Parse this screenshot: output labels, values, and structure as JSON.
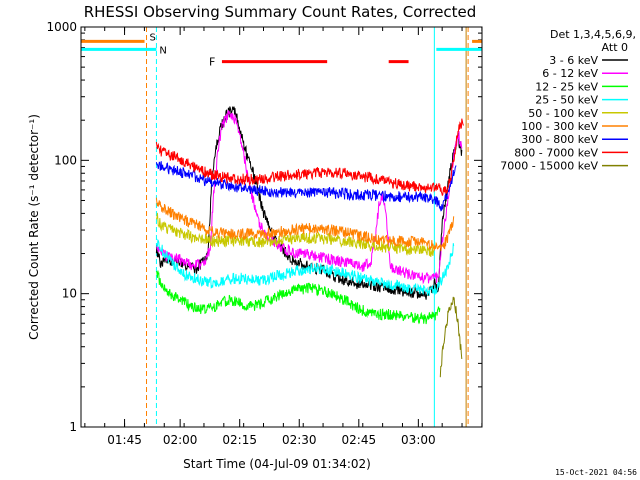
{
  "chart_data": {
    "type": "line",
    "title": "RHESSI Observing Summary Count Rates, Corrected",
    "xlabel": "Start Time (04-Jul-09 01:34:02)",
    "ylabel": "Corrected Count Rate (s⁻¹ detector⁻¹)",
    "y_scale": "log",
    "ylim": [
      1,
      1000
    ],
    "xlim_minutes": [
      1.0,
      102.0
    ],
    "x_tick_minutes": [
      11.97,
      25.97,
      40.97,
      55.97,
      70.97,
      85.97
    ],
    "x_tick_labels": [
      "01:45",
      "02:00",
      "02:15",
      "02:30",
      "02:45",
      "03:00"
    ],
    "y_tick_values": [
      1,
      10,
      100,
      1000
    ],
    "y_tick_labels": [
      "1",
      "10",
      "100",
      "1000"
    ],
    "footer_date": "15-Oct-2021 04:56",
    "legend": {
      "header_line1": "Det 1,3,4,5,6,9,",
      "header_line2": "Att 0"
    },
    "markers": {
      "saa": {
        "label": "S",
        "color": "#ff8000",
        "lines_at_minutes": [
          17.5,
          98.5
        ],
        "bars_minutes": [
          [
            1.0,
            17.0
          ],
          [
            99.5,
            102.0
          ]
        ],
        "bar_value": 780
      },
      "night": {
        "label": "N",
        "color": "#00ffff",
        "lines_at_minutes": [
          20.0,
          90.0,
          102.0
        ],
        "bars_minutes": [
          [
            1.0,
            20.0
          ],
          [
            90.5,
            102.0
          ]
        ],
        "bar_value": 680
      },
      "flare": {
        "label": "F",
        "color": "#ff0000",
        "bars_minutes": [
          [
            36.5,
            63.0
          ],
          [
            78.5,
            83.5
          ]
        ],
        "bar_value": 550
      },
      "extra_lines": [
        {
          "minute": 98.0,
          "color": "#c08000"
        }
      ]
    },
    "series": [
      {
        "name": "3 - 6 keV",
        "color": "#000000",
        "points": [
          [
            20,
            22
          ],
          [
            21,
            17
          ],
          [
            23,
            18
          ],
          [
            26,
            17
          ],
          [
            30,
            15
          ],
          [
            33,
            20
          ],
          [
            34,
            80
          ],
          [
            36,
            175
          ],
          [
            38,
            230
          ],
          [
            40,
            230
          ],
          [
            42,
            130
          ],
          [
            45,
            70
          ],
          [
            47,
            40
          ],
          [
            50,
            25
          ],
          [
            54,
            18
          ],
          [
            58,
            16
          ],
          [
            62,
            15
          ],
          [
            66,
            13
          ],
          [
            70,
            12
          ],
          [
            74,
            11.5
          ],
          [
            78,
            11
          ],
          [
            82,
            10.5
          ],
          [
            86,
            10
          ],
          [
            88,
            9.5
          ],
          [
            90,
            12
          ],
          [
            91,
            11
          ],
          [
            92,
            35
          ],
          [
            93,
            55
          ],
          [
            94,
            85
          ],
          [
            95,
            120
          ],
          [
            96,
            150
          ],
          [
            97,
            110
          ]
        ]
      },
      {
        "name": "6 - 12 keV",
        "color": "#ff00ff",
        "points": [
          [
            20,
            22
          ],
          [
            21,
            20
          ],
          [
            23,
            19
          ],
          [
            26,
            18
          ],
          [
            29,
            16
          ],
          [
            32,
            17
          ],
          [
            33.5,
            22
          ],
          [
            34.5,
            60
          ],
          [
            35.5,
            120
          ],
          [
            36.5,
            180
          ],
          [
            38,
            220
          ],
          [
            40,
            200
          ],
          [
            42,
            110
          ],
          [
            44,
            55
          ],
          [
            46,
            33
          ],
          [
            48,
            26
          ],
          [
            52,
            22
          ],
          [
            56,
            20
          ],
          [
            60,
            19
          ],
          [
            64,
            18
          ],
          [
            68,
            17
          ],
          [
            72,
            16
          ],
          [
            74,
            17
          ],
          [
            75,
            25
          ],
          [
            76,
            45
          ],
          [
            77,
            55
          ],
          [
            78,
            35
          ],
          [
            79,
            16
          ],
          [
            80,
            15
          ],
          [
            84,
            14
          ],
          [
            88,
            13
          ],
          [
            91,
            13
          ],
          [
            92,
            25
          ],
          [
            93,
            40
          ],
          [
            94,
            70
          ],
          [
            95,
            110
          ],
          [
            96,
            160
          ],
          [
            97,
            120
          ]
        ]
      },
      {
        "name": "12 - 25 keV",
        "color": "#00ff00",
        "points": [
          [
            20,
            15
          ],
          [
            21,
            12
          ],
          [
            23,
            10
          ],
          [
            26,
            9
          ],
          [
            29,
            8
          ],
          [
            32,
            7.5
          ],
          [
            35,
            8
          ],
          [
            38,
            9
          ],
          [
            41,
            8.5
          ],
          [
            44,
            8
          ],
          [
            47,
            8.5
          ],
          [
            50,
            9.5
          ],
          [
            54,
            10.5
          ],
          [
            58,
            11
          ],
          [
            62,
            10.5
          ],
          [
            66,
            9.5
          ],
          [
            70,
            8
          ],
          [
            74,
            7
          ],
          [
            78,
            7
          ],
          [
            82,
            6.8
          ],
          [
            86,
            6.5
          ],
          [
            88,
            6.5
          ],
          [
            90,
            6.8
          ],
          [
            91.5,
            8
          ]
        ]
      },
      {
        "name": "25 - 50 keV",
        "color": "#00ffff",
        "points": [
          [
            20,
            25
          ],
          [
            21,
            22
          ],
          [
            24,
            17
          ],
          [
            27,
            14
          ],
          [
            30,
            13
          ],
          [
            33,
            12
          ],
          [
            36,
            12.5
          ],
          [
            39,
            13
          ],
          [
            42,
            13
          ],
          [
            45,
            12.5
          ],
          [
            48,
            13
          ],
          [
            52,
            14
          ],
          [
            56,
            15
          ],
          [
            60,
            15.5
          ],
          [
            64,
            15
          ],
          [
            68,
            14
          ],
          [
            72,
            13
          ],
          [
            76,
            12
          ],
          [
            80,
            11.5
          ],
          [
            84,
            11
          ],
          [
            88,
            10.5
          ],
          [
            91,
            11
          ],
          [
            92,
            13
          ],
          [
            93,
            15
          ],
          [
            94,
            18
          ],
          [
            95,
            24
          ]
        ]
      },
      {
        "name": "50 - 100 keV",
        "color": "#c8c800",
        "points": [
          [
            20,
            38
          ],
          [
            21,
            33
          ],
          [
            24,
            30
          ],
          [
            27,
            28
          ],
          [
            30,
            26
          ],
          [
            33,
            25
          ],
          [
            36,
            24.5
          ],
          [
            39,
            25
          ],
          [
            42,
            25
          ],
          [
            45,
            24.5
          ],
          [
            48,
            24.5
          ],
          [
            52,
            25.5
          ],
          [
            56,
            26
          ],
          [
            60,
            26
          ],
          [
            64,
            25.5
          ],
          [
            68,
            24.5
          ],
          [
            72,
            23.5
          ],
          [
            76,
            22.5
          ],
          [
            80,
            22
          ],
          [
            84,
            21.5
          ],
          [
            88,
            21
          ],
          [
            90,
            20.5
          ]
        ]
      },
      {
        "name": "100 - 300 keV",
        "color": "#ff8000",
        "points": [
          [
            20,
            50
          ],
          [
            21,
            45
          ],
          [
            24,
            40
          ],
          [
            27,
            36
          ],
          [
            30,
            33
          ],
          [
            33,
            30
          ],
          [
            36,
            28.5
          ],
          [
            39,
            28
          ],
          [
            42,
            28
          ],
          [
            45,
            28
          ],
          [
            48,
            28.5
          ],
          [
            52,
            29.5
          ],
          [
            56,
            30.5
          ],
          [
            60,
            31
          ],
          [
            64,
            30
          ],
          [
            68,
            28.5
          ],
          [
            72,
            27
          ],
          [
            76,
            25.5
          ],
          [
            80,
            25
          ],
          [
            84,
            24.5
          ],
          [
            88,
            24
          ],
          [
            90,
            23
          ],
          [
            92,
            22
          ],
          [
            93,
            25
          ],
          [
            94,
            30
          ],
          [
            95,
            38
          ]
        ]
      },
      {
        "name": "300 - 800 keV",
        "color": "#0000ff",
        "points": [
          [
            20,
            96
          ],
          [
            21,
            90
          ],
          [
            24,
            84
          ],
          [
            27,
            80
          ],
          [
            30,
            75
          ],
          [
            33,
            70
          ],
          [
            36,
            67
          ],
          [
            39,
            64
          ],
          [
            42,
            62
          ],
          [
            45,
            60
          ],
          [
            48,
            58
          ],
          [
            52,
            57
          ],
          [
            56,
            57
          ],
          [
            60,
            57
          ],
          [
            64,
            57
          ],
          [
            68,
            56
          ],
          [
            72,
            55
          ],
          [
            76,
            54.5
          ],
          [
            80,
            54
          ],
          [
            84,
            53
          ],
          [
            88,
            53
          ],
          [
            90,
            50
          ],
          [
            91,
            48
          ],
          [
            92,
            45
          ],
          [
            93,
            52
          ],
          [
            94,
            65
          ],
          [
            95,
            85
          ],
          [
            95.5,
            100
          ]
        ]
      },
      {
        "name": "800 - 7000 keV",
        "color": "#ff0000",
        "points": [
          [
            20,
            125
          ],
          [
            21,
            118
          ],
          [
            24,
            108
          ],
          [
            27,
            98
          ],
          [
            30,
            88
          ],
          [
            33,
            80
          ],
          [
            36,
            75
          ],
          [
            39,
            73
          ],
          [
            42,
            72
          ],
          [
            45,
            72.5
          ],
          [
            48,
            73.5
          ],
          [
            52,
            76
          ],
          [
            56,
            79
          ],
          [
            60,
            81
          ],
          [
            64,
            81
          ],
          [
            68,
            80
          ],
          [
            72,
            76
          ],
          [
            76,
            71
          ],
          [
            80,
            67
          ],
          [
            84,
            64
          ],
          [
            88,
            62
          ],
          [
            90,
            62
          ],
          [
            91,
            63
          ],
          [
            92,
            60
          ],
          [
            93,
            58
          ],
          [
            94,
            70
          ],
          [
            95,
            110
          ],
          [
            96,
            165
          ],
          [
            97,
            190
          ],
          [
            97.5,
            175
          ]
        ]
      },
      {
        "name": "7000 - 15000 keV",
        "color": "#808000",
        "points": [
          [
            91.5,
            2.5
          ],
          [
            92,
            3.5
          ],
          [
            93,
            6
          ],
          [
            94,
            8
          ],
          [
            95,
            9
          ],
          [
            96,
            6
          ],
          [
            97,
            3
          ]
        ]
      }
    ]
  }
}
